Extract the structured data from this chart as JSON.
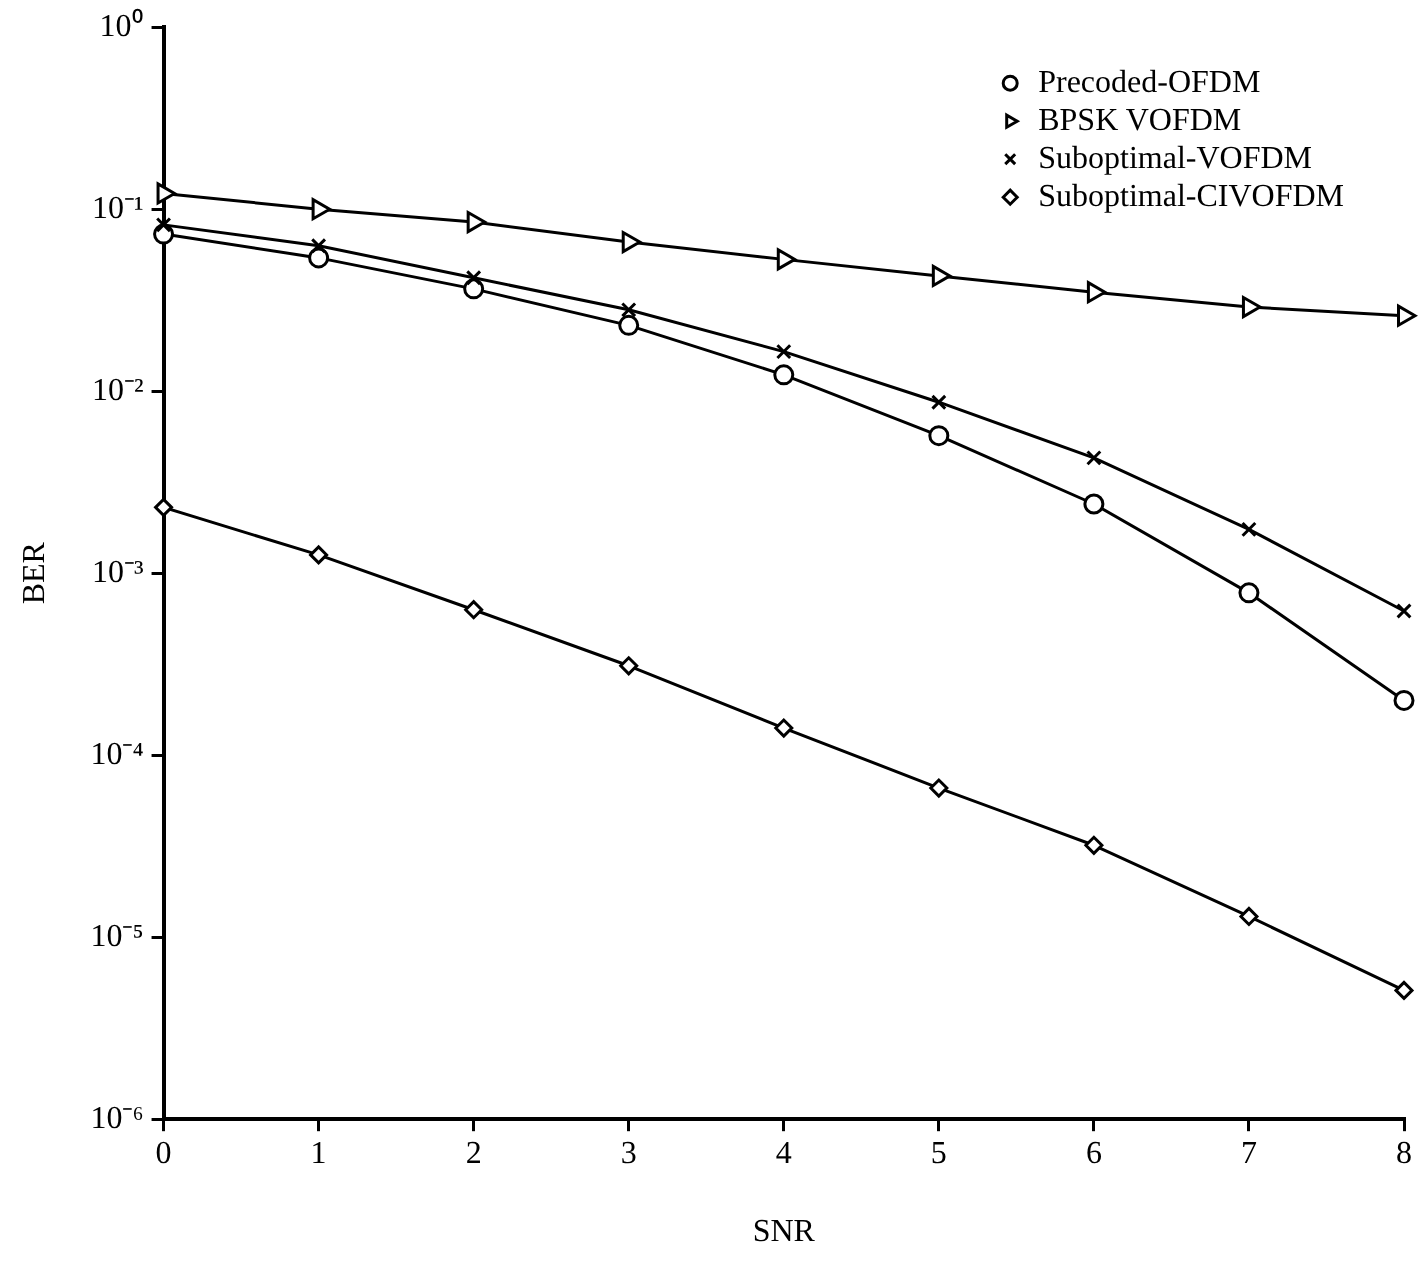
{
  "chart_data": {
    "type": "line",
    "xlabel": "SNR",
    "ylabel": "BER",
    "log": "y",
    "grid": false,
    "legend": "top right",
    "line_style": "solid",
    "x": [
      0,
      1,
      2,
      3,
      4,
      5,
      6,
      7,
      8
    ],
    "xlim": [
      0,
      8
    ],
    "xticks": [
      0,
      1,
      2,
      3,
      4,
      5,
      6,
      7,
      8
    ],
    "ylim": [
      1e-06,
      1
    ],
    "yticks": [
      {
        "value": 1e-06,
        "label": "10⁻⁶"
      },
      {
        "value": 1e-05,
        "label": "10⁻⁵"
      },
      {
        "value": 0.0001,
        "label": "10⁻⁴"
      },
      {
        "value": 0.001,
        "label": "10⁻³"
      },
      {
        "value": 0.01,
        "label": "10⁻²"
      },
      {
        "value": 0.1,
        "label": "10⁻¹"
      },
      {
        "value": 1,
        "label": "10⁰"
      }
    ],
    "series": [
      {
        "name": "Precoded-OFDM",
        "color": "#000000",
        "marker": "circle",
        "values": [
          0.073,
          0.054,
          0.0365,
          0.023,
          0.0123,
          0.0057,
          0.0024,
          0.00078,
          0.0002
        ]
      },
      {
        "name": "BPSK VOFDM",
        "color": "#000000",
        "marker": "triangle",
        "values": [
          0.122,
          0.1,
          0.085,
          0.066,
          0.053,
          0.043,
          0.035,
          0.029,
          0.026
        ]
      },
      {
        "name": "Suboptimal-VOFDM",
        "color": "#000000",
        "marker": "cross",
        "values": [
          0.082,
          0.063,
          0.042,
          0.028,
          0.0165,
          0.0087,
          0.0043,
          0.00174,
          0.00062
        ]
      },
      {
        "name": "Suboptimal-CIVOFDM",
        "color": "#000000",
        "marker": "diamond",
        "values": [
          0.0023,
          0.00126,
          0.00063,
          0.00031,
          0.000141,
          6.6e-05,
          3.2e-05,
          1.3e-05,
          5.1e-06
        ]
      }
    ]
  }
}
